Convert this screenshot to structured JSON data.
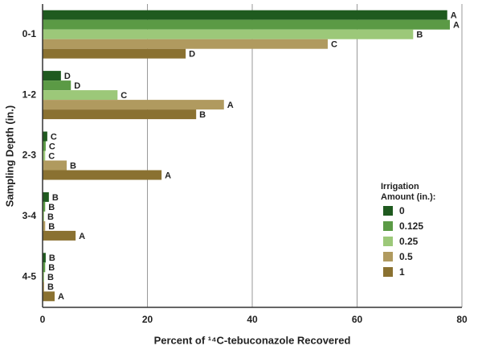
{
  "chart_data": {
    "type": "hbar",
    "x_label": "Percent of ¹⁴C-tebuconazole Recovered",
    "y_label": "Sampling Depth (in.)",
    "legend_title": [
      "Irrigation",
      "Amount (in.):"
    ],
    "categories": [
      "0-1",
      "1-2",
      "2-3",
      "3-4",
      "4-5"
    ],
    "series": [
      {
        "name": "0",
        "color": "#1f5a1f",
        "values": [
          77.2,
          3.5,
          0.9,
          1.2,
          0.6
        ],
        "letters": [
          "A",
          "D",
          "C",
          "B",
          "B"
        ]
      },
      {
        "name": "0.125",
        "color": "#5b9a45",
        "values": [
          77.7,
          5.4,
          0.6,
          0.5,
          0.5
        ],
        "letters": [
          "A",
          "D",
          "C",
          "B",
          "B"
        ]
      },
      {
        "name": "0.25",
        "color": "#9cc879",
        "values": [
          70.7,
          14.3,
          0.5,
          0.3,
          0.3
        ],
        "letters": [
          "B",
          "C",
          "C",
          "B",
          "B"
        ]
      },
      {
        "name": "0.5",
        "color": "#b09a5f",
        "values": [
          54.4,
          34.6,
          4.6,
          0.5,
          0.3
        ],
        "letters": [
          "C",
          "A",
          "B",
          "B",
          "B"
        ]
      },
      {
        "name": "1",
        "color": "#8a7131",
        "values": [
          27.3,
          29.3,
          22.7,
          6.3,
          2.3
        ],
        "letters": [
          "D",
          "B",
          "A",
          "A",
          "A"
        ]
      }
    ],
    "xlim": [
      0,
      80
    ],
    "xticks": [
      0,
      20,
      40,
      60,
      80
    ],
    "grid": true
  }
}
